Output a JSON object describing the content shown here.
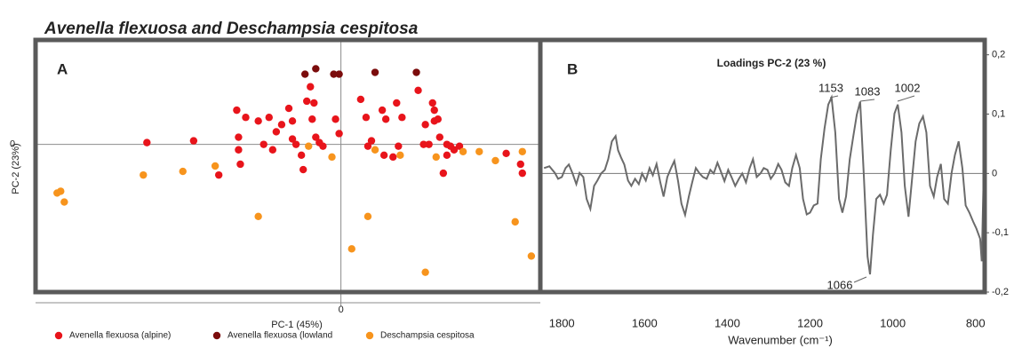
{
  "title": "Avenella flexuosa and Deschampsia cespitosa",
  "chart_data": [
    {
      "type": "scatter",
      "panel_label": "A",
      "xlabel": "PC-1 (45%)",
      "ylabel": "PC-2 (23%)",
      "xlim": [
        -1.7,
        1.11
      ],
      "ylim": [
        -0.82,
        0.58
      ],
      "xticks": [
        0
      ],
      "yticks": [
        0
      ],
      "series": [
        {
          "name": "Avenella flexuosa (alpine)",
          "color": "#e8141b",
          "x": [
            -1.08,
            -0.82,
            -0.68,
            -0.58,
            -0.57,
            -0.57,
            -0.56,
            -0.53,
            -0.46,
            -0.43,
            -0.4,
            -0.38,
            -0.36,
            -0.33,
            -0.29,
            -0.27,
            -0.27,
            -0.25,
            -0.22,
            -0.21,
            -0.19,
            -0.17,
            -0.16,
            -0.15,
            -0.14,
            -0.12,
            -0.1,
            -0.03,
            -0.01,
            0.11,
            0.14,
            0.15,
            0.17,
            0.23,
            0.24,
            0.25,
            0.29,
            0.31,
            0.32,
            0.34,
            0.43,
            0.46,
            0.47,
            0.49,
            0.51,
            0.52,
            0.52,
            0.54,
            0.55,
            0.57,
            0.59,
            0.59,
            0.61,
            0.63,
            0.66,
            0.92,
            1.0,
            1.01
          ],
          "values": [
            0.01,
            0.02,
            -0.17,
            0.19,
            0.04,
            -0.03,
            -0.11,
            0.15,
            0.13,
            0.0,
            0.15,
            -0.03,
            0.07,
            0.11,
            0.2,
            0.13,
            0.03,
            0.0,
            -0.06,
            -0.14,
            0.24,
            0.32,
            0.14,
            0.23,
            0.04,
            0.01,
            -0.01,
            0.14,
            0.06,
            0.25,
            0.15,
            -0.01,
            0.02,
            0.19,
            -0.06,
            0.14,
            -0.07,
            0.23,
            -0.01,
            0.15,
            0.3,
            0.0,
            0.11,
            0.0,
            0.23,
            0.13,
            0.19,
            0.14,
            0.04,
            -0.16,
            -0.06,
            0.0,
            -0.01,
            -0.03,
            -0.01,
            -0.05,
            -0.11,
            -0.16
          ]
        },
        {
          "name": "Avenella flexuosa (lowland",
          "color": "#7b0c0c",
          "x": [
            -0.2,
            -0.14,
            -0.04,
            -0.01,
            0.19,
            0.42
          ],
          "values": [
            0.39,
            0.42,
            0.39,
            0.39,
            0.4,
            0.4
          ]
        },
        {
          "name": "Deschampsia cespitosa",
          "color": "#f7941d",
          "x": [
            -1.58,
            -1.56,
            -1.54,
            -1.1,
            -0.88,
            -0.7,
            -0.46,
            -0.18,
            -0.05,
            0.06,
            0.15,
            0.19,
            0.33,
            0.47,
            0.53,
            0.68,
            0.77,
            0.86,
            0.97,
            1.01,
            1.06
          ],
          "values": [
            -0.27,
            -0.26,
            -0.32,
            -0.17,
            -0.15,
            -0.12,
            -0.4,
            -0.01,
            -0.07,
            -0.58,
            -0.4,
            -0.03,
            -0.06,
            -0.71,
            -0.07,
            -0.04,
            -0.04,
            -0.09,
            -0.43,
            -0.04,
            -0.62
          ]
        }
      ]
    },
    {
      "type": "line",
      "panel_label": "B",
      "title": "Loadings PC-2 (23 %)",
      "xlabel": "Wavenumber (cm⁻¹)",
      "color": "#6b6b6b",
      "y_axis_side": "right",
      "zero_line": true,
      "xlim": [
        1852,
        778
      ],
      "xticks": [
        1800,
        1600,
        1400,
        1200,
        1000,
        800
      ],
      "ylim": [
        -0.2,
        0.225
      ],
      "yticks": [
        {
          "value": 0.2,
          "label": "0,2"
        },
        {
          "value": 0.1,
          "label": "0,1"
        },
        0,
        {
          "value": -0.1,
          "label": "-0,1"
        },
        {
          "value": -0.2,
          "label": "-0,2"
        }
      ],
      "x": [
        1843,
        1830,
        1817,
        1809,
        1800,
        1791,
        1783,
        1774,
        1765,
        1757,
        1748,
        1740,
        1731,
        1722,
        1714,
        1705,
        1696,
        1688,
        1679,
        1670,
        1664,
        1657,
        1649,
        1640,
        1632,
        1623,
        1614,
        1606,
        1597,
        1588,
        1580,
        1571,
        1562,
        1554,
        1545,
        1536,
        1528,
        1519,
        1511,
        1502,
        1493,
        1485,
        1476,
        1467,
        1459,
        1450,
        1441,
        1433,
        1424,
        1416,
        1407,
        1398,
        1390,
        1381,
        1372,
        1364,
        1355,
        1346,
        1338,
        1329,
        1320,
        1312,
        1303,
        1295,
        1286,
        1277,
        1269,
        1260,
        1251,
        1243,
        1234,
        1225,
        1217,
        1208,
        1200,
        1191,
        1182,
        1174,
        1165,
        1156,
        1148,
        1139,
        1130,
        1122,
        1113,
        1104,
        1096,
        1087,
        1079,
        1070,
        1061,
        1055,
        1048,
        1040,
        1031,
        1022,
        1014,
        1005,
        996,
        988,
        979,
        971,
        962,
        953,
        945,
        936,
        927,
        919,
        910,
        901,
        893,
        884,
        876,
        867,
        858,
        850,
        841,
        832,
        824,
        815,
        806,
        798,
        789,
        785,
        780
      ],
      "values": [
        0.009,
        0.012,
        0.001,
        -0.009,
        -0.006,
        0.009,
        0.015,
        0,
        -0.018,
        0.001,
        -0.006,
        -0.043,
        -0.06,
        -0.021,
        -0.012,
        0,
        0.006,
        0.024,
        0.054,
        0.063,
        0.039,
        0.027,
        0.015,
        -0.012,
        -0.021,
        -0.009,
        -0.018,
        0,
        -0.012,
        0.009,
        -0.003,
        0.016,
        -0.015,
        -0.039,
        -0.006,
        0.009,
        0.021,
        -0.013,
        -0.051,
        -0.07,
        -0.039,
        -0.015,
        0.009,
        0,
        -0.006,
        -0.009,
        0.006,
        0,
        0.018,
        0.004,
        -0.013,
        0.006,
        -0.006,
        -0.021,
        -0.009,
        0,
        -0.015,
        0.009,
        0.024,
        -0.006,
        0,
        0.009,
        0.006,
        -0.009,
        0,
        0.016,
        0.006,
        -0.015,
        -0.021,
        0.009,
        0.031,
        0.009,
        -0.043,
        -0.069,
        -0.066,
        -0.054,
        -0.051,
        0.024,
        0.076,
        0.116,
        0.128,
        0.069,
        -0.043,
        -0.066,
        -0.039,
        0.024,
        0.061,
        0.099,
        0.121,
        -0.006,
        -0.14,
        -0.17,
        -0.103,
        -0.043,
        -0.036,
        -0.051,
        -0.036,
        0.039,
        0.101,
        0.116,
        0.069,
        -0.021,
        -0.073,
        -0.006,
        0.054,
        0.084,
        0.096,
        0.069,
        -0.021,
        -0.039,
        -0.006,
        0.016,
        -0.043,
        -0.051,
        0.001,
        0.031,
        0.054,
        0.009,
        -0.054,
        -0.066,
        -0.081,
        -0.093,
        -0.11,
        -0.148,
        0.012
      ],
      "annotations": [
        "1153",
        "1083",
        "1002",
        "1066"
      ]
    }
  ]
}
